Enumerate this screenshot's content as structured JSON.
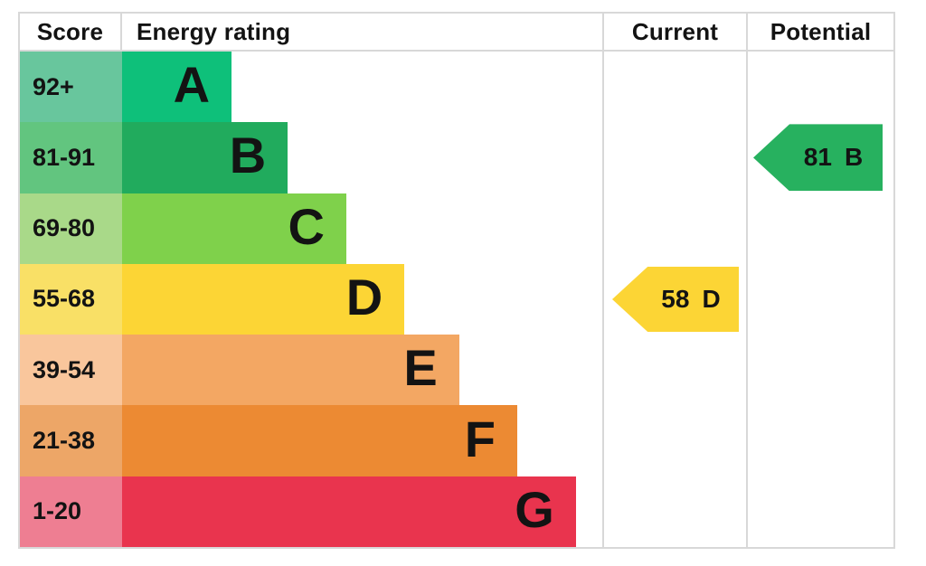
{
  "header": {
    "score": "Score",
    "energy_rating": "Energy rating",
    "current": "Current",
    "potential": "Potential"
  },
  "chart_data": {
    "type": "bar",
    "categories": [
      "A",
      "B",
      "C",
      "D",
      "E",
      "F",
      "G"
    ],
    "bands": [
      {
        "score": "92+",
        "letter": "A",
        "bar_color": "#0ec07a",
        "score_bg": "#68c69d",
        "bar_width_pct": 22.8
      },
      {
        "score": "81-91",
        "letter": "B",
        "bar_color": "#21ab5d",
        "score_bg": "#62c57f",
        "bar_width_pct": 34.5
      },
      {
        "score": "69-80",
        "letter": "C",
        "bar_color": "#7fd14b",
        "score_bg": "#a9d989",
        "bar_width_pct": 46.7
      },
      {
        "score": "55-68",
        "letter": "D",
        "bar_color": "#fcd535",
        "score_bg": "#f9e066",
        "bar_width_pct": 58.8
      },
      {
        "score": "39-54",
        "letter": "E",
        "bar_color": "#f3a763",
        "score_bg": "#f9c69c",
        "bar_width_pct": 70.2
      },
      {
        "score": "21-38",
        "letter": "F",
        "bar_color": "#ec8a33",
        "score_bg": "#eda667",
        "bar_width_pct": 82.3
      },
      {
        "score": "1-20",
        "letter": "G",
        "bar_color": "#e9344e",
        "score_bg": "#ee7e92",
        "bar_width_pct": 94.5
      }
    ],
    "current": {
      "value": "58",
      "letter": "D",
      "color": "#fcd535"
    },
    "potential": {
      "value": "81",
      "letter": "B",
      "color": "#27b15f"
    },
    "layout": {
      "grid": "off",
      "rows": 7
    }
  }
}
